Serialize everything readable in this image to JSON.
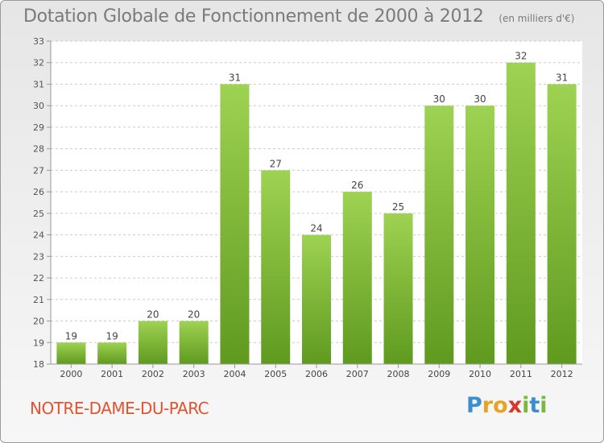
{
  "chart_data": {
    "type": "bar",
    "title": "Dotation Globale de Fonctionnement de 2000 à 2012",
    "subtitle": "(en milliers d'€)",
    "categories": [
      "2000",
      "2001",
      "2002",
      "2003",
      "2004",
      "2005",
      "2006",
      "2007",
      "2008",
      "2009",
      "2010",
      "2011",
      "2012"
    ],
    "values": [
      19,
      19,
      20,
      20,
      31,
      27,
      24,
      26,
      25,
      30,
      30,
      32,
      31
    ],
    "ylim": [
      18,
      33
    ],
    "yticks": [
      18,
      19,
      20,
      21,
      22,
      23,
      24,
      25,
      26,
      27,
      28,
      29,
      30,
      31,
      32,
      33
    ],
    "grid": true,
    "bar_color": "#7dbb3a",
    "bar_color_top": "#9ed252",
    "bar_color_bottom": "#5f9a1f"
  },
  "footer": {
    "city": "NOTRE-DAME-DU-PARC"
  },
  "logo": {
    "letters": [
      "P",
      "r",
      "o",
      "x",
      "i",
      "t",
      "i"
    ],
    "colors": [
      "#3a8fd0",
      "#e8a323",
      "#e8a323",
      "#d9352a",
      "#7cb83a",
      "#3a8fd0",
      "#7cb83a"
    ]
  }
}
